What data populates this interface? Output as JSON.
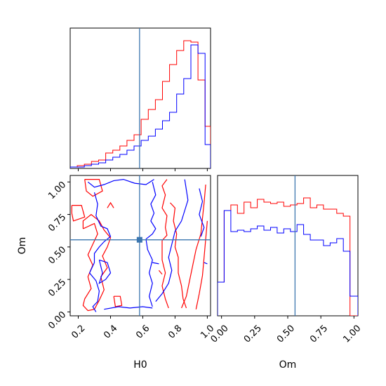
{
  "colors": {
    "red": "#ff0000",
    "blue": "#0000ff",
    "truth": "#3b76af",
    "frame": "#000000"
  },
  "chart_data": [
    {
      "id": "hist_h0",
      "type": "histogram",
      "panel": "top-left",
      "xlim": [
        0.15,
        1.02
      ],
      "ylim": [
        0,
        1.0
      ],
      "bins": [
        0.15,
        0.194,
        0.238,
        0.282,
        0.326,
        0.37,
        0.414,
        0.458,
        0.502,
        0.546,
        0.59,
        0.634,
        0.678,
        0.722,
        0.766,
        0.81,
        0.854,
        0.898,
        0.942,
        0.986,
        1.02
      ],
      "series": [
        {
          "color": "red",
          "values": [
            0.01,
            0.02,
            0.03,
            0.05,
            0.06,
            0.11,
            0.13,
            0.16,
            0.2,
            0.24,
            0.35,
            0.42,
            0.49,
            0.62,
            0.74,
            0.84,
            0.91,
            0.9,
            0.63,
            0.3
          ]
        },
        {
          "color": "blue",
          "values": [
            0.01,
            0.01,
            0.02,
            0.03,
            0.04,
            0.06,
            0.08,
            0.1,
            0.13,
            0.16,
            0.2,
            0.23,
            0.28,
            0.34,
            0.4,
            0.53,
            0.64,
            0.88,
            0.82,
            0.17
          ]
        }
      ],
      "truth_x": 0.58,
      "x_ticks": [
        "0.2",
        "0.4",
        "0.6",
        "0.8",
        "1.0"
      ],
      "x_tick_values": [
        0.2,
        0.4,
        0.6,
        0.8,
        1.0
      ]
    },
    {
      "id": "contour_h0_om",
      "type": "contour",
      "panel": "bottom-left",
      "xlim": [
        0.15,
        1.02
      ],
      "ylim": [
        -0.03,
        1.05
      ],
      "truth_x": 0.58,
      "truth_y": 0.555,
      "xlabel": "H0",
      "ylabel": "Om",
      "x_ticks": [
        "0.2",
        "0.4",
        "0.6",
        "0.8",
        "1.0"
      ],
      "x_tick_values": [
        0.2,
        0.4,
        0.6,
        0.8,
        1.0
      ],
      "y_ticks": [
        "0.00",
        "0.25",
        "0.50",
        "0.75",
        "1.00"
      ],
      "y_tick_values": [
        0.0,
        0.25,
        0.5,
        0.75,
        1.0
      ],
      "series": [
        {
          "color": "red",
          "paths": [
            [
              [
                0.16,
                0.82
              ],
              [
                0.22,
                0.82
              ],
              [
                0.24,
                0.73
              ],
              [
                0.17,
                0.7
              ],
              [
                0.16,
                0.76
              ],
              [
                0.16,
                0.82
              ]
            ],
            [
              [
                0.24,
                1.02
              ],
              [
                0.33,
                1.02
              ],
              [
                0.35,
                0.93
              ],
              [
                0.29,
                0.89
              ],
              [
                0.25,
                0.93
              ],
              [
                0.24,
                1.02
              ]
            ],
            [
              [
                0.23,
                0.64
              ],
              [
                0.3,
                0.68
              ],
              [
                0.32,
                0.6
              ],
              [
                0.29,
                0.52
              ],
              [
                0.26,
                0.44
              ],
              [
                0.29,
                0.36
              ],
              [
                0.26,
                0.27
              ],
              [
                0.28,
                0.18
              ],
              [
                0.24,
                0.1
              ],
              [
                0.23,
                0.05
              ],
              [
                0.26,
                0.01
              ],
              [
                0.3,
                0.02
              ],
              [
                0.33,
                0.09
              ],
              [
                0.36,
                0.17
              ],
              [
                0.34,
                0.27
              ],
              [
                0.38,
                0.34
              ],
              [
                0.35,
                0.43
              ],
              [
                0.38,
                0.5
              ],
              [
                0.4,
                0.57
              ],
              [
                0.36,
                0.63
              ],
              [
                0.33,
                0.7
              ],
              [
                0.28,
                0.75
              ],
              [
                0.23,
                0.7
              ],
              [
                0.23,
                0.64
              ]
            ],
            [
              [
                0.42,
                0.12
              ],
              [
                0.46,
                0.12
              ],
              [
                0.47,
                0.05
              ],
              [
                0.43,
                0.04
              ],
              [
                0.42,
                0.12
              ]
            ],
            [
              [
                0.38,
                0.8
              ],
              [
                0.4,
                0.84
              ],
              [
                0.42,
                0.8
              ]
            ],
            [
              [
                0.72,
                0.55
              ],
              [
                0.75,
                0.59
              ],
              [
                0.74,
                0.65
              ],
              [
                0.75,
                0.74
              ],
              [
                0.72,
                0.8
              ],
              [
                0.74,
                0.9
              ],
              [
                0.72,
                0.97
              ],
              [
                0.75,
                1.02
              ]
            ],
            [
              [
                0.72,
                0.55
              ],
              [
                0.72,
                0.48
              ],
              [
                0.72,
                0.4
              ],
              [
                0.74,
                0.3
              ],
              [
                0.72,
                0.2
              ],
              [
                0.74,
                0.1
              ],
              [
                0.76,
                0.03
              ]
            ],
            [
              [
                0.77,
                0.84
              ],
              [
                0.8,
                0.8
              ],
              [
                0.79,
                0.7
              ],
              [
                0.81,
                0.6
              ],
              [
                0.8,
                0.5
              ],
              [
                0.82,
                0.42
              ],
              [
                0.82,
                0.3
              ],
              [
                0.84,
                0.2
              ],
              [
                0.85,
                0.1
              ],
              [
                0.87,
                0.03
              ]
            ],
            [
              [
                0.84,
                0.03
              ],
              [
                0.87,
                0.12
              ],
              [
                0.89,
                0.24
              ],
              [
                0.91,
                0.36
              ],
              [
                0.93,
                0.48
              ],
              [
                0.96,
                0.6
              ],
              [
                0.97,
                0.72
              ],
              [
                0.98,
                0.84
              ],
              [
                0.99,
                0.98
              ]
            ],
            [
              [
                0.93,
                0.02
              ],
              [
                0.95,
                0.14
              ],
              [
                0.97,
                0.28
              ],
              [
                0.98,
                0.42
              ],
              [
                0.99,
                0.56
              ],
              [
                1.0,
                0.7
              ]
            ],
            [
              [
                0.7,
                0.32
              ],
              [
                0.72,
                0.29
              ]
            ]
          ]
        },
        {
          "color": "blue",
          "paths": [
            [
              [
                0.26,
                1.0
              ],
              [
                0.3,
                0.96
              ],
              [
                0.36,
                0.98
              ],
              [
                0.42,
                1.01
              ],
              [
                0.48,
                1.02
              ],
              [
                0.55,
                0.99
              ],
              [
                0.62,
                0.98
              ],
              [
                0.67,
                1.02
              ]
            ],
            [
              [
                0.3,
                0.92
              ],
              [
                0.32,
                0.83
              ],
              [
                0.31,
                0.74
              ],
              [
                0.34,
                0.66
              ],
              [
                0.38,
                0.64
              ],
              [
                0.4,
                0.58
              ],
              [
                0.36,
                0.54
              ],
              [
                0.33,
                0.5
              ],
              [
                0.3,
                0.45
              ],
              [
                0.3,
                0.38
              ],
              [
                0.27,
                0.3
              ],
              [
                0.31,
                0.24
              ],
              [
                0.33,
                0.16
              ],
              [
                0.32,
                0.08
              ],
              [
                0.29,
                0.04
              ],
              [
                0.31,
                0.0
              ]
            ],
            [
              [
                0.33,
                0.4
              ],
              [
                0.38,
                0.38
              ],
              [
                0.4,
                0.3
              ],
              [
                0.37,
                0.25
              ],
              [
                0.33,
                0.22
              ],
              [
                0.35,
                0.3
              ],
              [
                0.33,
                0.4
              ]
            ],
            [
              [
                0.36,
                0.02
              ],
              [
                0.45,
                0.04
              ],
              [
                0.52,
                0.03
              ],
              [
                0.6,
                0.04
              ],
              [
                0.66,
                0.03
              ]
            ],
            [
              [
                0.62,
                0.56
              ],
              [
                0.66,
                0.6
              ],
              [
                0.68,
                0.64
              ],
              [
                0.65,
                0.7
              ],
              [
                0.67,
                0.76
              ],
              [
                0.65,
                0.83
              ],
              [
                0.68,
                0.9
              ],
              [
                0.66,
                1.0
              ]
            ],
            [
              [
                0.62,
                0.56
              ],
              [
                0.63,
                0.48
              ],
              [
                0.66,
                0.4
              ],
              [
                0.64,
                0.3
              ],
              [
                0.66,
                0.22
              ],
              [
                0.64,
                0.12
              ],
              [
                0.66,
                0.04
              ]
            ],
            [
              [
                0.68,
                0.08
              ],
              [
                0.72,
                0.14
              ],
              [
                0.76,
                0.22
              ],
              [
                0.78,
                0.32
              ],
              [
                0.76,
                0.42
              ],
              [
                0.78,
                0.52
              ],
              [
                0.8,
                0.62
              ],
              [
                0.84,
                0.7
              ],
              [
                0.86,
                0.78
              ],
              [
                0.88,
                0.86
              ],
              [
                0.87,
                0.94
              ],
              [
                0.86,
                1.02
              ]
            ],
            [
              [
                0.95,
                0.95
              ],
              [
                0.97,
                0.85
              ],
              [
                0.95,
                0.75
              ],
              [
                0.98,
                0.65
              ],
              [
                0.96,
                0.58
              ]
            ],
            [
              [
                0.66,
                0.38
              ],
              [
                0.7,
                0.37
              ]
            ],
            [
              [
                0.98,
                0.38
              ],
              [
                1.0,
                0.37
              ]
            ]
          ]
        }
      ]
    },
    {
      "id": "hist_om",
      "type": "histogram",
      "panel": "bottom-right",
      "xlim": [
        -0.03,
        1.03
      ],
      "ylim": [
        0,
        1.0
      ],
      "bins": [
        -0.03,
        0.02,
        0.07,
        0.12,
        0.17,
        0.22,
        0.27,
        0.32,
        0.37,
        0.42,
        0.47,
        0.52,
        0.57,
        0.62,
        0.67,
        0.72,
        0.77,
        0.82,
        0.87,
        0.92,
        0.97,
        1.03
      ],
      "series": [
        {
          "color": "red",
          "values": [
            0.24,
            0.75,
            0.79,
            0.73,
            0.81,
            0.77,
            0.83,
            0.81,
            0.8,
            0.81,
            0.78,
            0.79,
            0.8,
            0.84,
            0.77,
            0.79,
            0.76,
            0.76,
            0.73,
            0.71,
            0.0
          ]
        },
        {
          "color": "blue",
          "values": [
            0.24,
            0.75,
            0.6,
            0.61,
            0.6,
            0.62,
            0.64,
            0.61,
            0.63,
            0.59,
            0.62,
            0.6,
            0.65,
            0.58,
            0.54,
            0.54,
            0.5,
            0.52,
            0.55,
            0.46,
            0.14
          ]
        }
      ],
      "truth_x": 0.555,
      "xlabel": "Om",
      "x_ticks": [
        "0.00",
        "0.25",
        "0.50",
        "0.75",
        "1.00"
      ],
      "x_tick_values": [
        0.0,
        0.25,
        0.5,
        0.75,
        1.0
      ]
    }
  ]
}
